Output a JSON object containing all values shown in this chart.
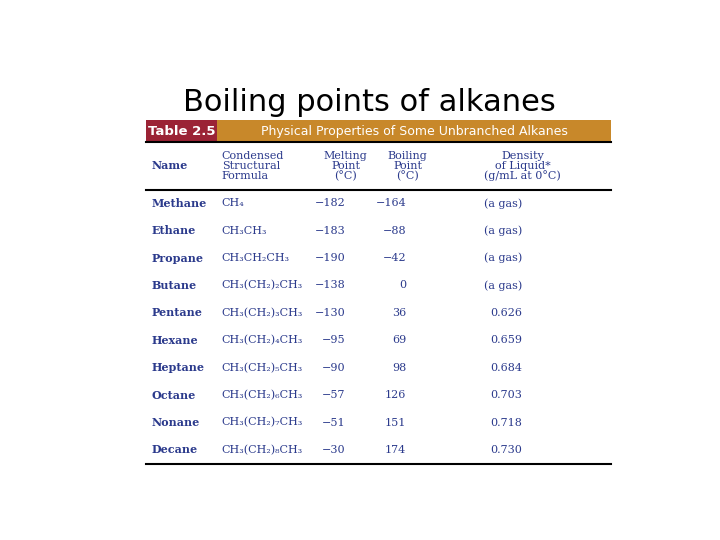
{
  "title": "Boiling points of alkanes",
  "table_label": "Table 2.5",
  "table_title": "Physical Properties of Some Unbranched Alkanes",
  "col_headers": [
    [
      "Name",
      "",
      ""
    ],
    [
      "Condensed",
      "Structural",
      "Formula"
    ],
    [
      "Melting",
      "Point",
      "(°C)"
    ],
    [
      "Boiling",
      "Point",
      "(°C)"
    ],
    [
      "Density",
      "of Liquid*",
      "(g/mL at 0°C)"
    ]
  ],
  "rows": [
    [
      "Methane",
      "CH₄",
      "−182",
      "−164",
      "(a gas)"
    ],
    [
      "Ethane",
      "CH₃CH₃",
      "−183",
      "−88",
      "(a gas)"
    ],
    [
      "Propane",
      "CH₃CH₂CH₃",
      "−190",
      "−42",
      "(a gas)"
    ],
    [
      "Butane",
      "CH₃(CH₂)₂CH₃",
      "−138",
      "0",
      "(a gas)"
    ],
    [
      "Pentane",
      "CH₃(CH₂)₃CH₃",
      "−130",
      "36",
      "0.626"
    ],
    [
      "Hexane",
      "CH₃(CH₂)₄CH₃",
      "−95",
      "69",
      "0.659"
    ],
    [
      "Heptane",
      "CH₃(CH₂)₅CH₃",
      "−90",
      "98",
      "0.684"
    ],
    [
      "Octane",
      "CH₃(CH₂)₆CH₃",
      "−57",
      "126",
      "0.703"
    ],
    [
      "Nonane",
      "CH₃(CH₂)₇CH₃",
      "−51",
      "151",
      "0.718"
    ],
    [
      "Decane",
      "CH₃(CH₂)₈CH₃",
      "−30",
      "174",
      "0.730"
    ]
  ],
  "table_label_bg": "#9B2335",
  "table_title_bg": "#C8882A",
  "table_label_color": "#ffffff",
  "table_title_color": "#ffffff",
  "text_color": "#2B3A8C",
  "title_fontsize": 22,
  "header_fontsize": 8,
  "data_fontsize": 8,
  "banner_fontsize": 9,
  "label_fontsize": 9.5,
  "bg_color": "#ffffff"
}
